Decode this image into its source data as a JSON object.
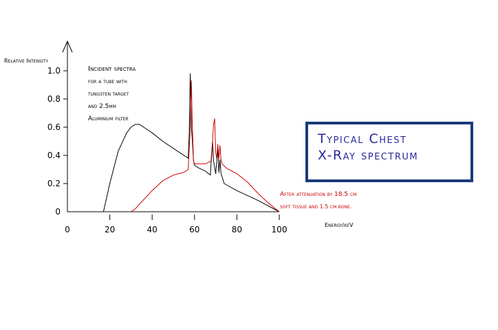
{
  "chart_data": {
    "type": "line",
    "ylabel": "Relative Intensity",
    "xlabel": "Energy/keV",
    "xlim": [
      0,
      100
    ],
    "ylim": [
      0,
      1.0
    ],
    "x_ticks": [
      0,
      20,
      40,
      60,
      80,
      100
    ],
    "y_ticks": [
      0,
      0.2,
      0.4,
      0.6,
      0.8,
      1.0
    ],
    "y_tick_labels": [
      "0",
      "0.2",
      "0.4",
      "0.6",
      "0.8",
      "1.0"
    ],
    "grid": false,
    "series": [
      {
        "color": "#000000",
        "x": [
          17,
          20,
          24,
          28,
          30,
          32,
          34,
          36,
          40,
          45,
          50,
          55,
          57,
          57.5,
          58,
          58.5,
          59,
          59.5,
          60,
          61,
          62,
          65,
          67.5,
          68,
          68.5,
          69,
          70,
          71,
          71.5,
          72,
          72.5,
          73,
          74,
          80,
          90,
          100
        ],
        "y": [
          0.0,
          0.2,
          0.43,
          0.56,
          0.6,
          0.62,
          0.62,
          0.6,
          0.56,
          0.5,
          0.45,
          0.4,
          0.38,
          0.55,
          0.98,
          0.6,
          0.5,
          0.36,
          0.33,
          0.32,
          0.31,
          0.29,
          0.26,
          0.4,
          0.5,
          0.36,
          0.27,
          0.45,
          0.28,
          0.37,
          0.27,
          0.25,
          0.2,
          0.15,
          0.08,
          0.0
        ]
      },
      {
        "color": "#cc0000",
        "x": [
          30,
          32,
          35,
          40,
          45,
          50,
          55,
          57,
          58,
          58.5,
          59,
          59.5,
          60,
          62,
          65,
          68,
          69,
          69.5,
          70,
          70.5,
          71,
          71.5,
          72,
          72.5,
          73,
          75,
          80,
          85,
          90,
          95,
          100
        ],
        "y": [
          0.0,
          0.02,
          0.07,
          0.15,
          0.22,
          0.26,
          0.28,
          0.3,
          0.6,
          0.93,
          0.6,
          0.36,
          0.34,
          0.34,
          0.34,
          0.36,
          0.62,
          0.66,
          0.42,
          0.38,
          0.48,
          0.38,
          0.47,
          0.37,
          0.34,
          0.31,
          0.27,
          0.21,
          0.13,
          0.06,
          0.0
        ]
      }
    ],
    "annotations": {
      "incident": [
        "Incident spectra",
        "for a tube with",
        "tungsten target",
        "and 2.5mm",
        "Aluminium filter"
      ],
      "attenuated": [
        "After attenuation by 18.5 cm",
        "soft tissue and 1.5 cm bone."
      ]
    }
  },
  "title": {
    "line1": "Typical Chest",
    "line2": "X-Ray spectrum"
  },
  "colors": {
    "incident": "#000000",
    "attenuated": "#cc0000",
    "title_text": "#2a2a9a",
    "title_border": "#1a3a78"
  }
}
